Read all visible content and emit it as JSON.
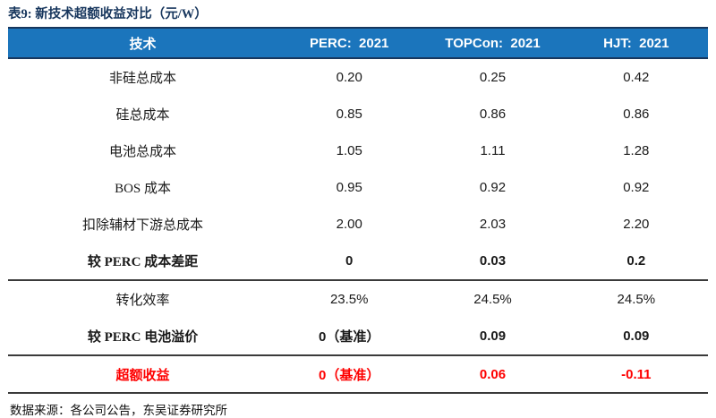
{
  "title": "表9:  新技术超额收益对比（元/W）",
  "colors": {
    "header_bg": "#1b75bc",
    "header_border": "#17365d",
    "title_navy": "#17365d",
    "excess_red": "#fe0000",
    "divider": "#3a3a3a"
  },
  "table": {
    "columns": [
      "技术",
      "PERC:  2021",
      "TOPCon:  2021",
      "HJT:  2021"
    ],
    "rows": [
      {
        "label": "非硅总成本",
        "values": [
          "0.20",
          "0.25",
          "0.42"
        ]
      },
      {
        "label": "硅总成本",
        "values": [
          "0.85",
          "0.86",
          "0.86"
        ]
      },
      {
        "label": "电池总成本",
        "values": [
          "1.05",
          "1.11",
          "1.28"
        ]
      },
      {
        "label": "BOS 成本",
        "values": [
          "0.95",
          "0.92",
          "0.92"
        ]
      },
      {
        "label": "扣除辅材下游总成本",
        "values": [
          "2.00",
          "2.03",
          "2.20"
        ]
      },
      {
        "label": "较 PERC 成本差距",
        "values": [
          "0",
          "0.03",
          "0.2"
        ]
      },
      {
        "label": "转化效率",
        "values": [
          "23.5%",
          "24.5%",
          "24.5%"
        ]
      },
      {
        "label": "较 PERC 电池溢价",
        "values": [
          "0（基准）",
          "0.09",
          "0.09"
        ]
      },
      {
        "label": "超额收益",
        "values": [
          "0（基准）",
          "0.06",
          "-0.11"
        ]
      }
    ]
  },
  "footer": "数据来源：各公司公告，东吴证券研究所"
}
